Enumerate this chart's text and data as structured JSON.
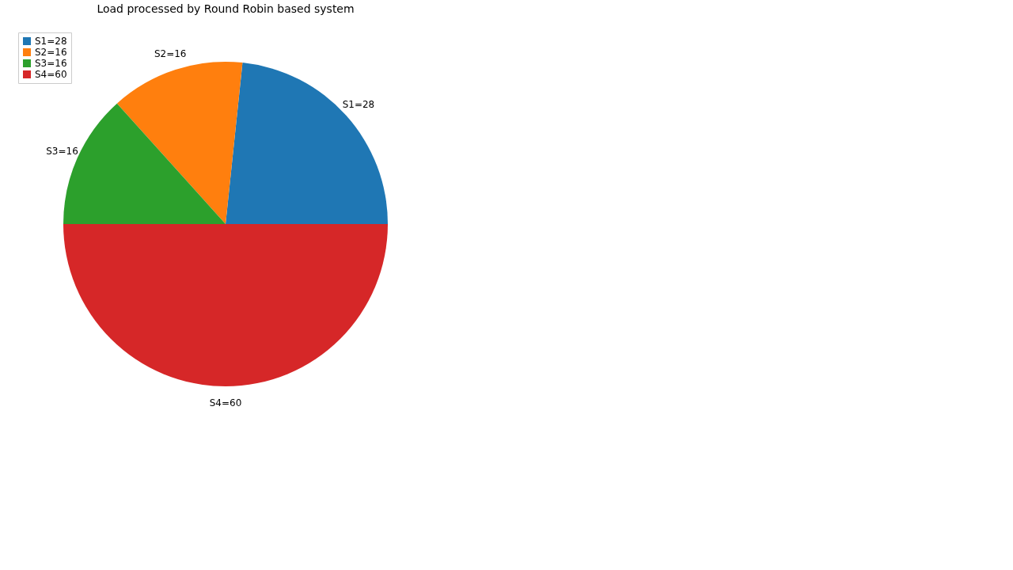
{
  "chart_data": {
    "type": "pie",
    "title": "Load processed by Round Robin based system",
    "categories": [
      "S1=28",
      "S2=16",
      "S3=16",
      "S4=60"
    ],
    "values": [
      28,
      16,
      16,
      60
    ],
    "colors": [
      "#1f77b4",
      "#ff7f0e",
      "#2ca02c",
      "#d62728"
    ],
    "legend": "top left"
  }
}
